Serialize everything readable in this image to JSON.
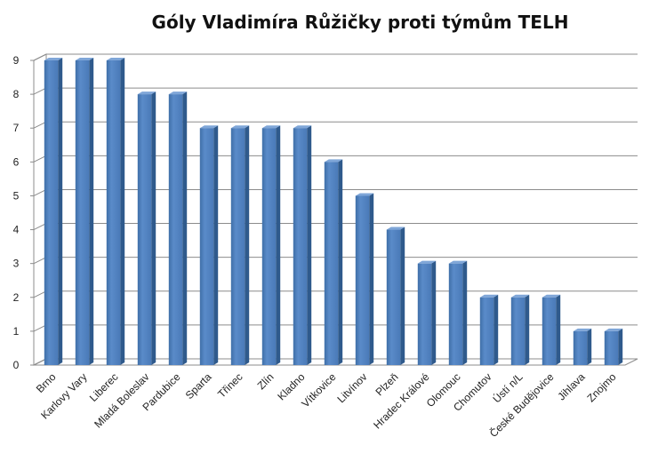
{
  "chart_data": {
    "type": "bar",
    "title": "Góly Vladimíra Růžičky proti týmům TELH",
    "xlabel": "",
    "ylabel": "",
    "ylim": [
      0,
      9
    ],
    "yticks": [
      0,
      1,
      2,
      3,
      4,
      5,
      6,
      7,
      8,
      9
    ],
    "grid": true,
    "legend": "none",
    "bar_color": "#4f81bd",
    "categories": [
      "Brno",
      "Karlovy Vary",
      "Liberec",
      "Mladá Boleslav",
      "Pardubice",
      "Sparta",
      "Třinec",
      "Zlín",
      "Kladno",
      "Vítkovice",
      "Litvínov",
      "Plzeň",
      "Hradec Králové",
      "Olomouc",
      "Chomutov",
      "Ústí n/L",
      "České Budějovice",
      "Jihlava",
      "Znojmo"
    ],
    "values": [
      9,
      9,
      9,
      8,
      8,
      7,
      7,
      7,
      7,
      6,
      5,
      4,
      3,
      3,
      2,
      2,
      2,
      1,
      1
    ]
  }
}
